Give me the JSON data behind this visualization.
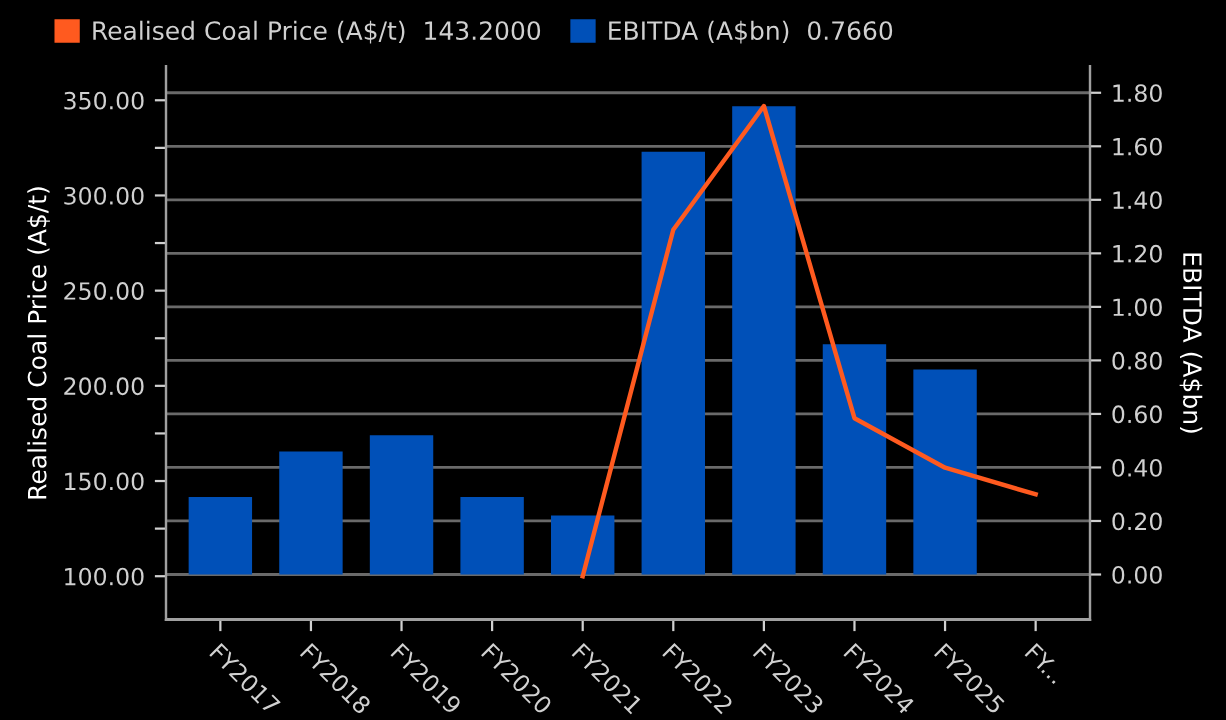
{
  "chart_data": {
    "type": "bar",
    "ylabel": "Realised Coal Price (A$/t)",
    "y2label": "EBITDA (A$bn)",
    "categories": [
      "FY2017",
      "FY2018",
      "FY2019",
      "FY2020",
      "FY2021",
      "FY2022",
      "FY2023",
      "FY2024",
      "FY2025",
      "FY..."
    ],
    "series": [
      {
        "name": "Realised Coal Price (A$/t)  143.2000",
        "type": "line",
        "color": "#ff5a1f",
        "values": [
          null,
          null,
          null,
          null,
          100,
          282,
          347,
          183,
          157,
          143
        ]
      },
      {
        "name": "EBITDA (A$bn)  0.7660",
        "axis": "y2",
        "color": "#0050b8",
        "values": [
          0.29,
          0.46,
          0.52,
          0.29,
          0.22,
          1.58,
          1.75,
          0.86,
          0.766,
          null
        ]
      }
    ],
    "ylim": [
      77,
      368
    ],
    "yticks": [
      {
        "value": 100,
        "label": "100.00"
      },
      {
        "value": 125,
        "label": null
      },
      {
        "value": 150,
        "label": "150.00"
      },
      {
        "value": 175,
        "label": null
      },
      {
        "value": 200,
        "label": "200.00"
      },
      {
        "value": 225,
        "label": null
      },
      {
        "value": 250,
        "label": "250.00"
      },
      {
        "value": 275,
        "label": null
      },
      {
        "value": 300,
        "label": "300.00"
      },
      {
        "value": 325,
        "label": null
      },
      {
        "value": 350,
        "label": "350.00"
      }
    ],
    "y2lim": [
      -0.17,
      1.9
    ],
    "y2ticks": [
      {
        "value": 0,
        "label": "0.00"
      },
      {
        "value": 0.2,
        "label": "0.20"
      },
      {
        "value": 0.4,
        "label": "0.40"
      },
      {
        "value": 0.6,
        "label": "0.60"
      },
      {
        "value": 0.8,
        "label": "0.80"
      },
      {
        "value": 1.0,
        "label": "1.00"
      },
      {
        "value": 1.2,
        "label": "1.20"
      },
      {
        "value": 1.4,
        "label": "1.40"
      },
      {
        "value": 1.6,
        "label": "1.60"
      },
      {
        "value": 1.8,
        "label": "1.80"
      }
    ],
    "grid": "y",
    "legend": "top left",
    "marker": "none",
    "line_style": "solid"
  }
}
